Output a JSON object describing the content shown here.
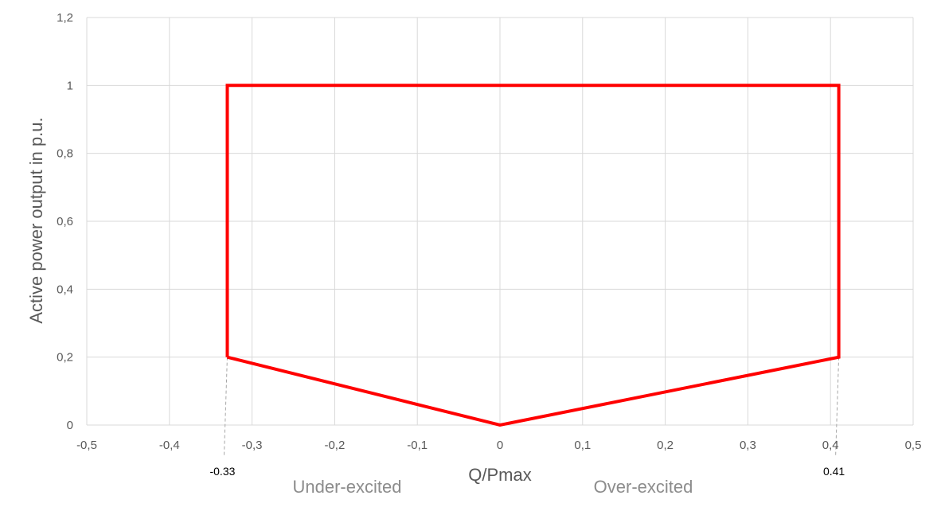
{
  "chart_data": {
    "type": "line",
    "title": "",
    "xlabel": "Q/Pmax",
    "ylabel": "Active power output in p.u.",
    "xlim": [
      -0.5,
      0.5
    ],
    "ylim": [
      0,
      1.2
    ],
    "grid": true,
    "x_ticks": [
      -0.5,
      -0.4,
      -0.3,
      -0.2,
      -0.1,
      0,
      0.1,
      0.2,
      0.3,
      0.4,
      0.5
    ],
    "x_tick_labels": [
      "-0,5",
      "-0,4",
      "-0,3",
      "-0,2",
      "-0,1",
      "0",
      "0,1",
      "0,2",
      "0,3",
      "0,4",
      "0,5"
    ],
    "y_ticks": [
      0,
      0.2,
      0.4,
      0.6,
      0.8,
      1,
      1.2
    ],
    "y_tick_labels": [
      "0",
      "0,2",
      "0,4",
      "0,6",
      "0,8",
      "1",
      "1,2"
    ],
    "series": [
      {
        "color": "#ff0000",
        "x": [
          -0.33,
          -0.33,
          0.41,
          0.41,
          0,
          -0.33
        ],
        "y": [
          0.2,
          1,
          1,
          0.2,
          0,
          0.2
        ]
      }
    ],
    "annotations": [
      {
        "text": "-0.33",
        "x": -0.33
      },
      {
        "text": "0.41",
        "x": 0.41
      }
    ],
    "region_labels": {
      "left": "Under-excited",
      "right": "Over-excited"
    },
    "colors": {
      "series": "#ff0000",
      "grid": "#d9d9d9",
      "tick_text": "#595959",
      "region_text": "#8c8c8c",
      "guide": "#a6a6a6"
    }
  }
}
